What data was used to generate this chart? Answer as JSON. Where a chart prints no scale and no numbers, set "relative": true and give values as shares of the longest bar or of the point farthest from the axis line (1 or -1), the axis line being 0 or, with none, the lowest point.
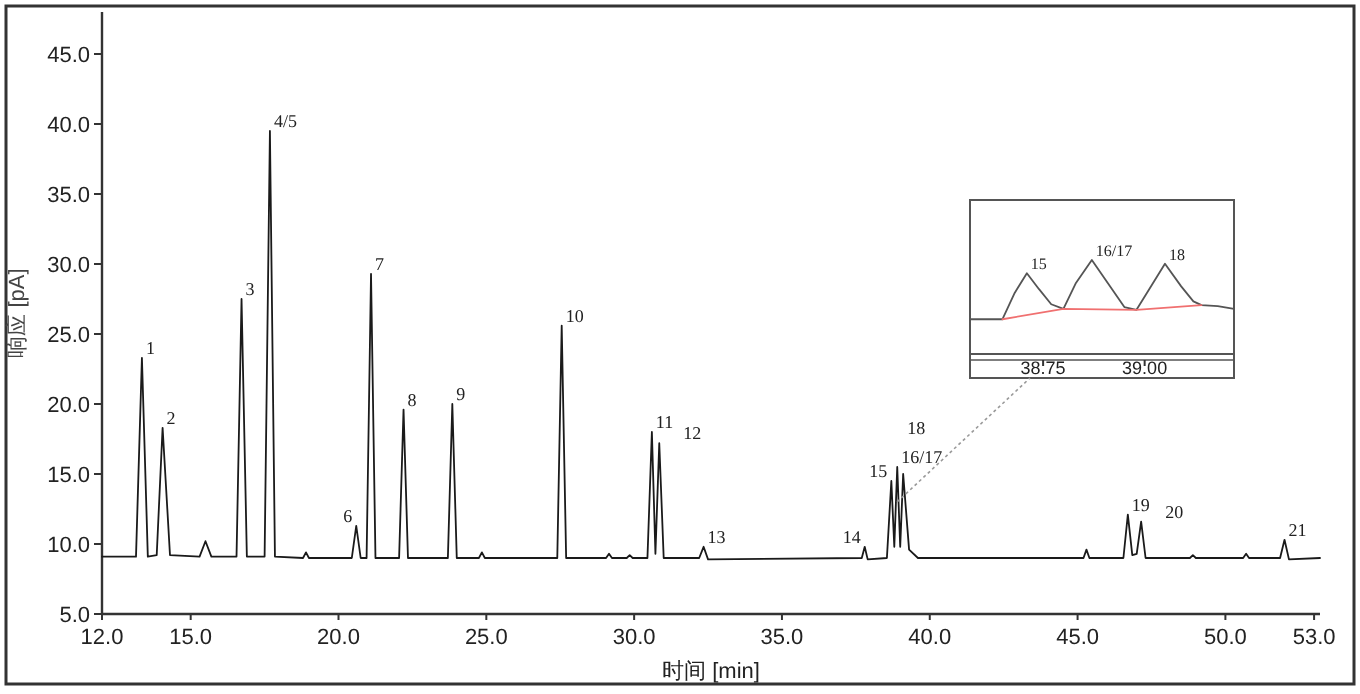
{
  "chart_data": [
    {
      "type": "line",
      "xlabel": "时间 [min]",
      "ylabel": "响应 [pA]",
      "xlim": [
        12,
        53.2
      ],
      "ylim": [
        5,
        48
      ],
      "xticks": [
        {
          "value": 12,
          "label": "12.0"
        },
        {
          "value": 15,
          "label": "15.0"
        },
        {
          "value": 20,
          "label": "20.0"
        },
        {
          "value": 25,
          "label": "25.0"
        },
        {
          "value": 30,
          "label": "30.0"
        },
        {
          "value": 35,
          "label": "35.0"
        },
        {
          "value": 40,
          "label": "40.0"
        },
        {
          "value": 45,
          "label": "45.0"
        },
        {
          "value": 50,
          "label": "50.0"
        },
        {
          "value": 53,
          "label": "53.0"
        }
      ],
      "yticks": [
        {
          "value": 5,
          "label": "5.0"
        },
        {
          "value": 10,
          "label": "10.0"
        },
        {
          "value": 15,
          "label": "15.0"
        },
        {
          "value": 20,
          "label": "20.0"
        },
        {
          "value": 25,
          "label": "25.0"
        },
        {
          "value": 30,
          "label": "30.0"
        },
        {
          "value": 35,
          "label": "35.0"
        },
        {
          "value": 40,
          "label": "40.0"
        },
        {
          "value": 45,
          "label": "45.0"
        }
      ],
      "series": [
        {
          "color": "#1a1a1a",
          "x": [
            12.0,
            13.15,
            13.35,
            13.55,
            13.85,
            14.05,
            14.3,
            15.3,
            15.5,
            15.7,
            16.55,
            16.72,
            16.9,
            17.5,
            17.68,
            17.85,
            18.8,
            18.9,
            19.0,
            20.45,
            20.6,
            20.75,
            20.95,
            21.1,
            21.25,
            22.05,
            22.2,
            22.35,
            23.7,
            23.85,
            24.0,
            24.75,
            24.85,
            24.95,
            27.4,
            27.55,
            27.7,
            29.05,
            29.15,
            29.25,
            29.75,
            29.85,
            29.95,
            30.45,
            30.6,
            30.72,
            30.85,
            31.0,
            32.2,
            32.35,
            32.5,
            37.7,
            37.8,
            37.9,
            38.55,
            38.7,
            38.8,
            38.9,
            39.0,
            39.1,
            39.3,
            39.6,
            45.2,
            45.3,
            45.4,
            46.55,
            46.7,
            46.85,
            47.0,
            47.15,
            47.3,
            48.8,
            48.9,
            49.0,
            50.6,
            50.7,
            50.8,
            51.85,
            52.0,
            52.15,
            53.2
          ],
          "values": [
            9.1,
            9.1,
            23.3,
            9.1,
            9.2,
            18.3,
            9.2,
            9.1,
            10.2,
            9.1,
            9.1,
            27.5,
            9.1,
            9.1,
            39.5,
            9.1,
            9.0,
            9.4,
            9.0,
            9.0,
            11.3,
            9.0,
            9.0,
            29.3,
            9.0,
            9.0,
            19.6,
            9.0,
            9.0,
            20.0,
            9.0,
            9.0,
            9.4,
            9.0,
            9.0,
            25.6,
            9.0,
            9.0,
            9.3,
            9.0,
            9.0,
            9.2,
            9.0,
            9.0,
            18.0,
            9.3,
            17.2,
            9.0,
            9.0,
            9.8,
            8.9,
            9.0,
            9.8,
            8.9,
            9.0,
            14.5,
            9.8,
            15.5,
            9.8,
            15.0,
            9.6,
            9.0,
            9.0,
            9.6,
            9.0,
            9.0,
            12.1,
            9.2,
            9.3,
            11.6,
            9.0,
            9.0,
            9.2,
            9.0,
            9.0,
            9.3,
            9.0,
            9.0,
            10.3,
            8.9,
            9.0
          ]
        }
      ],
      "annotations": [
        {
          "text": "1",
          "x": 13.35,
          "y": 23.3
        },
        {
          "text": "2",
          "x": 14.05,
          "y": 18.3
        },
        {
          "text": "3",
          "x": 16.72,
          "y": 27.5
        },
        {
          "text": "4/5",
          "x": 17.68,
          "y": 39.5
        },
        {
          "text": "6",
          "x": 20.6,
          "y": 11.3
        },
        {
          "text": "7",
          "x": 21.1,
          "y": 29.3
        },
        {
          "text": "8",
          "x": 22.2,
          "y": 19.6
        },
        {
          "text": "9",
          "x": 23.85,
          "y": 20.0
        },
        {
          "text": "10",
          "x": 27.55,
          "y": 25.6
        },
        {
          "text": "11",
          "x": 30.6,
          "y": 18.0
        },
        {
          "text": "12",
          "x": 30.85,
          "y": 17.2
        },
        {
          "text": "13",
          "x": 32.35,
          "y": 9.8
        },
        {
          "text": "14",
          "x": 37.8,
          "y": 9.8
        },
        {
          "text": "15",
          "x": 38.7,
          "y": 14.5
        },
        {
          "text": "16/17",
          "x": 38.9,
          "y": 15.5
        },
        {
          "text": "18",
          "x": 39.1,
          "y": 15.0
        },
        {
          "text": "19",
          "x": 46.7,
          "y": 12.1
        },
        {
          "text": "20",
          "x": 47.15,
          "y": 11.6
        },
        {
          "text": "21",
          "x": 52.0,
          "y": 10.3
        }
      ]
    },
    {
      "type": "line",
      "relative": true,
      "xlim": [
        38.57,
        39.22
      ],
      "xticks": [
        38.75,
        {
          "value": 39.0,
          "label": "39.00"
        }
      ],
      "series": [
        {
          "color": "#555555",
          "x": [
            38.57,
            38.65,
            38.68,
            38.71,
            38.74,
            38.77,
            38.8,
            38.83,
            38.87,
            38.91,
            38.95,
            38.98,
            39.02,
            39.05,
            39.09,
            39.12,
            39.14,
            39.18,
            39.22
          ],
          "values": [
            0.37,
            0.37,
            0.65,
            0.86,
            0.69,
            0.53,
            0.48,
            0.75,
            1.0,
            0.75,
            0.5,
            0.47,
            0.75,
            0.96,
            0.72,
            0.56,
            0.52,
            0.51,
            0.48
          ]
        },
        {
          "color": "#f07070",
          "x": [
            38.65,
            38.8,
            38.98,
            39.14
          ],
          "values": [
            0.37,
            0.48,
            0.47,
            0.52
          ]
        }
      ],
      "annotations": [
        {
          "text": "15",
          "x": 38.71,
          "y": 0.86
        },
        {
          "text": "16/17",
          "x": 38.87,
          "y": 1.0
        },
        {
          "text": "18",
          "x": 39.05,
          "y": 0.96
        }
      ]
    }
  ]
}
